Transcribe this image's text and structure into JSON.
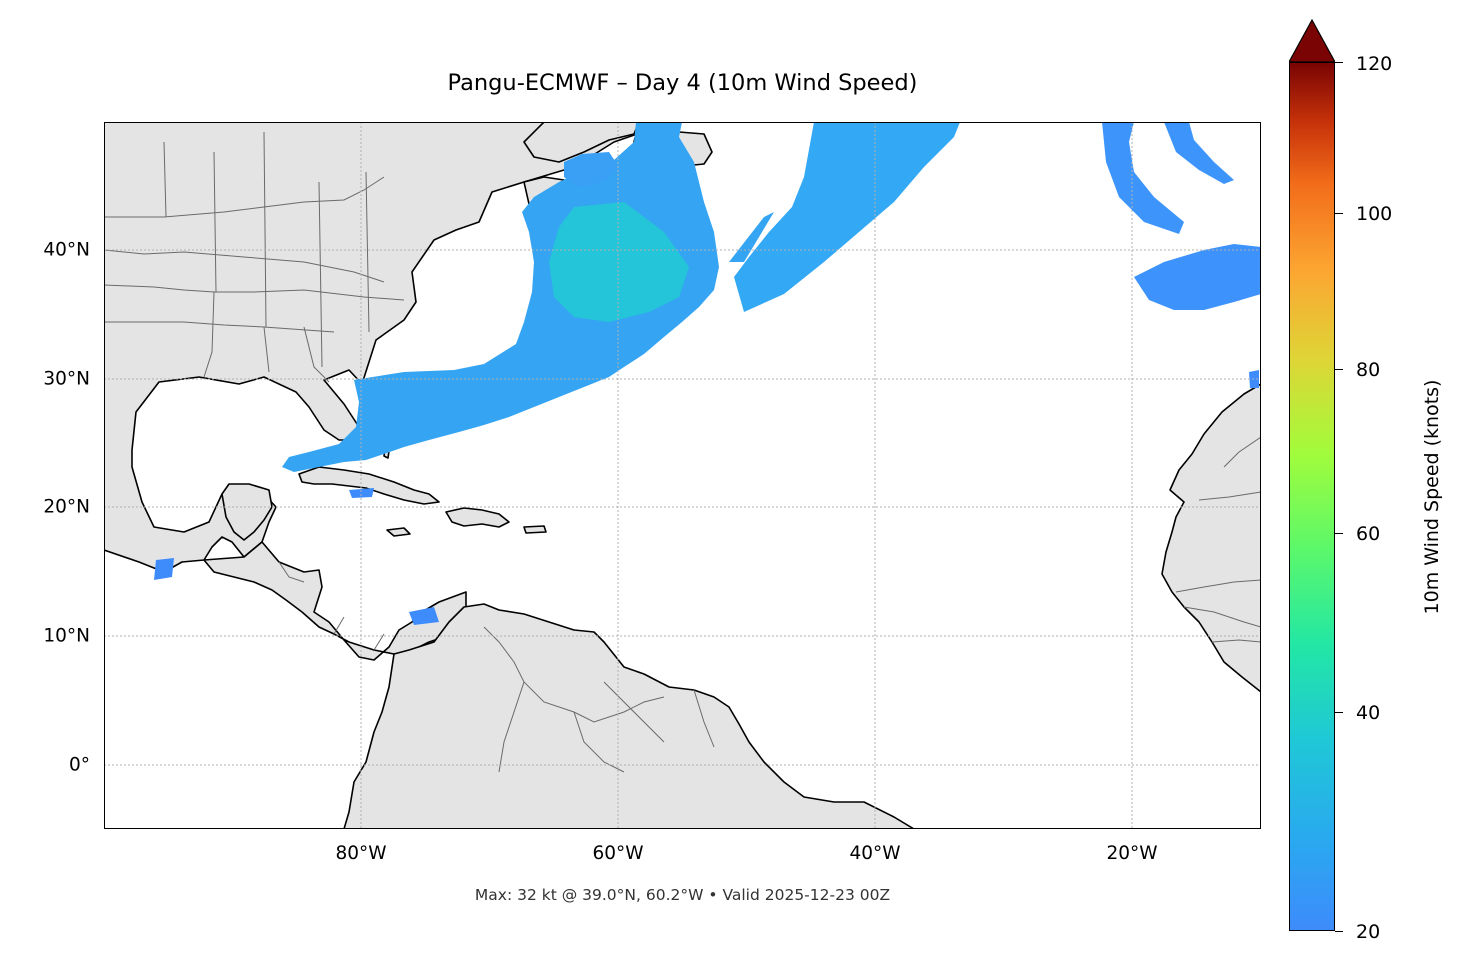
{
  "title": "Pangu-ECMWF – Day 4 (10m Wind Speed)",
  "caption": "Max: 32 kt @ 39.0°N, 60.2°W • Valid 2025-12-23 00Z",
  "map": {
    "lat_labels": [
      "40°N",
      "30°N",
      "20°N",
      "10°N",
      "0°"
    ],
    "lon_labels": [
      "80°W",
      "60°W",
      "40°W",
      "20°W"
    ],
    "extent_lon": [
      -98,
      -8
    ],
    "extent_lat": [
      -5,
      50
    ],
    "gridlines": true,
    "land_color": "#e4e4e4",
    "coast_color": "#000000",
    "border_color": "#666666"
  },
  "colorbar": {
    "label": "10m Wind Speed (knots)",
    "ticks": [
      "120",
      "100",
      "80",
      "60",
      "40",
      "20"
    ],
    "range": [
      20,
      120
    ],
    "extend": "max",
    "colormap": "turbo"
  },
  "max_wind": {
    "value_kt": 32,
    "lat": 39.0,
    "lon": -60.2
  }
}
